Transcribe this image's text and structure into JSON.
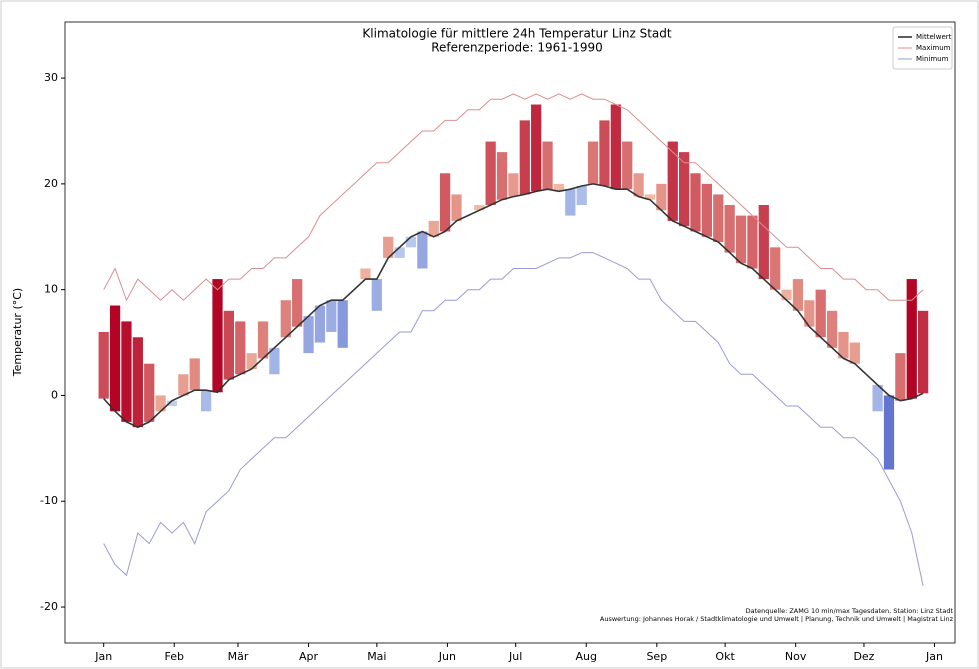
{
  "chart_data": {
    "type": "line",
    "title": "Klimatologie für mittlere 24h Temperatur Linz Stadt",
    "subtitle": "Referenzperiode: 1961-1990",
    "y_label": "Temperatur (°C)",
    "source_note": "Datenquelle: ZAMG 10 min/max Tagesdaten, Station: Linz Stadt",
    "author_note": "Auswertung: Johannes Horak / Stadtklimatologie und Umwelt | Planung, Technik und Umwelt | Magistrat Linz",
    "xlim": [
      -16,
      375
    ],
    "ylim": [
      -23.4,
      35.3
    ],
    "xticks": [
      {
        "value": 1,
        "label": "Jan"
      },
      {
        "value": 32,
        "label": "Feb"
      },
      {
        "value": 60,
        "label": "Mär"
      },
      {
        "value": 91,
        "label": "Apr"
      },
      {
        "value": 121,
        "label": "Mai"
      },
      {
        "value": 152,
        "label": "Jun"
      },
      {
        "value": 182,
        "label": "Jul"
      },
      {
        "value": 213,
        "label": "Aug"
      },
      {
        "value": 244,
        "label": "Sep"
      },
      {
        "value": 274,
        "label": "Okt"
      },
      {
        "value": 305,
        "label": "Nov"
      },
      {
        "value": 335,
        "label": "Dez"
      },
      {
        "value": 366,
        "label": "Jan"
      }
    ],
    "yticks": [
      -20,
      -10,
      0,
      10,
      20,
      30
    ],
    "legend": "upper right",
    "colormap": "coolwarm",
    "x": [
      1,
      6,
      11,
      16,
      21,
      26,
      31,
      36,
      41,
      46,
      51,
      56,
      61,
      66,
      71,
      76,
      81,
      86,
      91,
      96,
      101,
      106,
      111,
      116,
      121,
      126,
      131,
      136,
      141,
      146,
      151,
      156,
      161,
      166,
      171,
      176,
      181,
      186,
      191,
      196,
      201,
      206,
      211,
      216,
      221,
      226,
      231,
      236,
      241,
      246,
      251,
      256,
      261,
      266,
      271,
      276,
      281,
      286,
      291,
      296,
      301,
      306,
      311,
      316,
      321,
      326,
      331,
      336,
      341,
      346,
      351,
      356,
      361
    ],
    "series": [
      {
        "name": "Mittelwert",
        "color": "#333333",
        "values": [
          -0.3,
          -1.5,
          -2.5,
          -3.0,
          -2.5,
          -1.5,
          -0.5,
          0.0,
          0.5,
          0.5,
          0.3,
          1.5,
          2.0,
          2.5,
          3.5,
          4.5,
          5.5,
          6.5,
          7.5,
          8.5,
          9.0,
          9.0,
          10.0,
          11.0,
          11.0,
          13.0,
          14.0,
          15.0,
          15.5,
          15.0,
          15.5,
          16.5,
          17.0,
          17.5,
          18.0,
          18.5,
          18.8,
          19.0,
          19.3,
          19.5,
          19.3,
          19.5,
          19.8,
          20.0,
          19.8,
          19.5,
          19.5,
          18.8,
          18.5,
          17.5,
          16.5,
          16.0,
          15.5,
          15.0,
          14.5,
          13.5,
          12.5,
          12.0,
          11.0,
          10.0,
          9.0,
          8.0,
          6.5,
          5.5,
          4.5,
          3.5,
          3.0,
          2.0,
          1.0,
          0.0,
          -0.5,
          -0.3,
          0.2
        ]
      },
      {
        "name": "Maximum",
        "color": "#d89090",
        "values": [
          10,
          12,
          9,
          11,
          10,
          9,
          10,
          9,
          10,
          11,
          10,
          11,
          11,
          12,
          12,
          13,
          13,
          14,
          15,
          17,
          18,
          19,
          20,
          21,
          22,
          22,
          23,
          24,
          25,
          25,
          26,
          26,
          27,
          27,
          28,
          28,
          28.5,
          28,
          28.5,
          28,
          28.5,
          28,
          28.5,
          28,
          28,
          27.5,
          27,
          26,
          25,
          24,
          23,
          22,
          22,
          21,
          20,
          19,
          18,
          17,
          16,
          15,
          14,
          14,
          13,
          12,
          12,
          11,
          11,
          10,
          10,
          9,
          9,
          9,
          10
        ]
      },
      {
        "name": "Minimum",
        "color": "#9a9ad8",
        "values": [
          -14,
          -16,
          -17,
          -13,
          -14,
          -12,
          -13,
          -12,
          -14,
          -11,
          -10,
          -9,
          -7,
          -6,
          -5,
          -4,
          -4,
          -3,
          -2,
          -1,
          0,
          1,
          2,
          3,
          4,
          5,
          6,
          6,
          8,
          8,
          9,
          9,
          10,
          10,
          11,
          11,
          12,
          12,
          12,
          12.5,
          13,
          13,
          13.5,
          13.5,
          13,
          12.5,
          12,
          11,
          11,
          9,
          8,
          7,
          7,
          6,
          5,
          3,
          2,
          2,
          1,
          0,
          -1,
          -1,
          -2,
          -3,
          -3,
          -4,
          -4,
          -5,
          -6,
          -8,
          -10,
          -13,
          -18
        ]
      }
    ],
    "anomaly_bars": {
      "values": [
        6,
        8.5,
        7,
        5.5,
        3,
        0,
        -1,
        2,
        3.5,
        -1.5,
        11,
        8,
        7,
        4,
        7,
        2,
        9,
        11,
        4,
        5,
        6,
        4.5,
        10,
        12,
        8,
        15,
        13,
        14,
        12,
        16.5,
        21,
        19,
        17,
        18,
        24,
        23,
        21,
        26,
        27.5,
        24,
        20,
        17,
        18,
        24,
        26,
        27.5,
        24,
        21,
        19,
        20,
        24,
        23,
        21,
        20,
        19,
        18,
        17,
        17,
        18,
        14,
        10,
        11,
        9,
        10,
        8,
        6,
        5,
        2,
        -1.5,
        -7,
        4,
        11,
        8
      ]
    }
  }
}
